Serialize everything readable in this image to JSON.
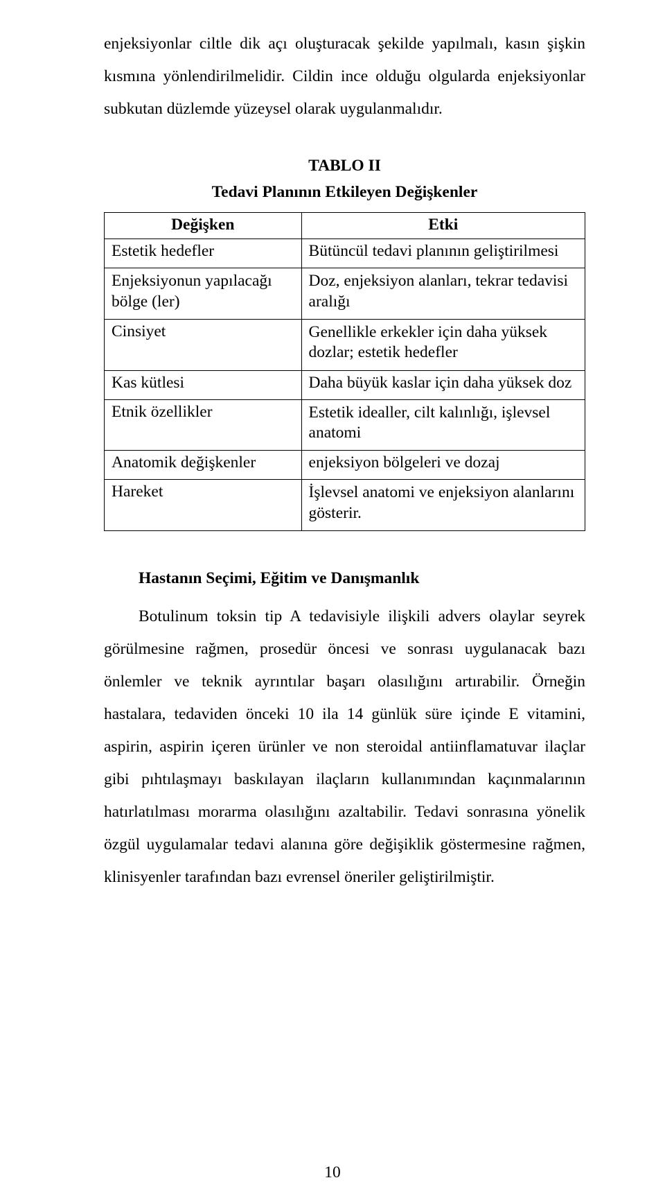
{
  "colors": {
    "page_bg": "#ffffff",
    "text": "#000000",
    "table_border": "#000000"
  },
  "typography": {
    "family": "Times New Roman",
    "body_size_pt": 12,
    "line_spacing": "double",
    "table_line_spacing": "1.25"
  },
  "para1": "enjeksiyonlar ciltle dik açı oluşturacak şekilde yapılmalı, kasın şişkin kısmına yönlendirilmelidir. Cildin ince olduğu olgularda enjeksiyonlar subkutan düzlemde yüzeysel olarak uygulanmalıdır.",
  "table": {
    "title": "TABLO II",
    "subtitle": "Tedavi Planının Etkileyen Değişkenler",
    "columns": [
      "Değişken",
      "Etki"
    ],
    "rows": [
      {
        "left": "Estetik hedefler",
        "right": "Bütüncül tedavi planının geliştirilmesi"
      },
      {
        "left": "Enjeksiyonun yapılacağı bölge (ler)",
        "right": "Doz, enjeksiyon alanları, tekrar tedavisi aralığı"
      },
      {
        "left": "Cinsiyet",
        "right": "Genellikle erkekler için daha yüksek dozlar; estetik hedefler"
      },
      {
        "left": "Kas kütlesi",
        "right": "Daha büyük kaslar için daha yüksek doz"
      },
      {
        "left": "Etnik özellikler",
        "right": "Estetik idealler, cilt kalınlığı, işlevsel anatomi"
      },
      {
        "left": "Anatomik değişkenler",
        "right": "enjeksiyon bölgeleri ve dozaj"
      },
      {
        "left": "Hareket",
        "right": "İşlevsel anatomi ve enjeksiyon alanlarını gösterir."
      }
    ]
  },
  "section_title": "Hastanın Seçimi, Eğitim ve Danışmanlık",
  "para2": "Botulinum toksin tip A tedavisiyle ilişkili advers olaylar seyrek görülmesine rağmen, prosedür öncesi ve sonrası uygulanacak bazı önlemler ve teknik ayrıntılar başarı olasılığını artırabilir. Örneğin hastalara, tedaviden önceki 10 ila 14 günlük süre içinde E vitamini, aspirin, aspirin içeren ürünler ve non steroidal antiinflamatuvar ilaçlar gibi pıhtılaşmayı baskılayan ilaçların kullanımından kaçınmalarının hatırlatılması morarma olasılığını azaltabilir. Tedavi sonrasına yönelik özgül uygulamalar tedavi alanına göre değişiklik göstermesine rağmen, klinisyenler tarafından bazı evrensel öneriler geliştirilmiştir.",
  "page_number": "10"
}
